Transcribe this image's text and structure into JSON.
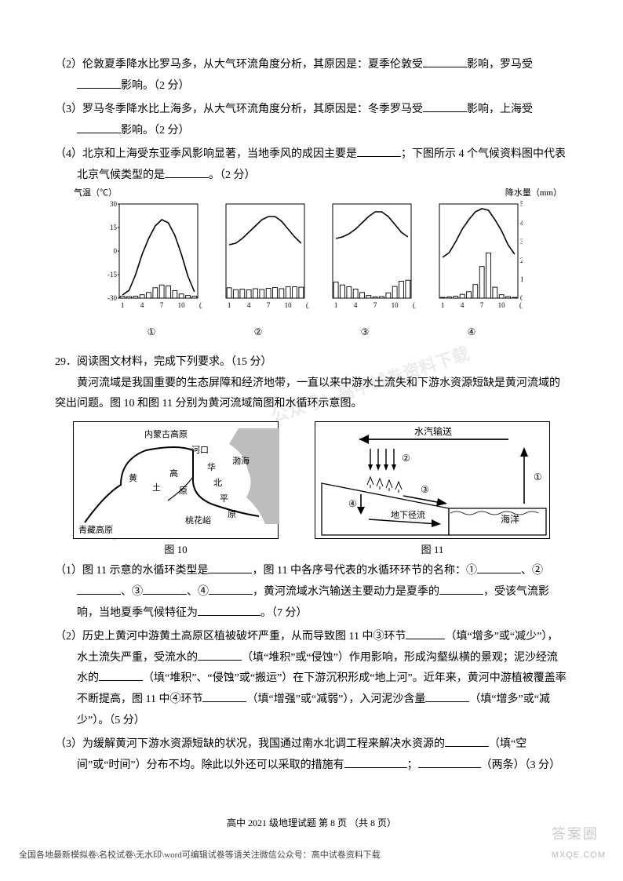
{
  "q2": {
    "s2": "（2）伦敦夏季降水比罗马多，从大气环流角度分析，其原因是：夏季伦敦受",
    "s2b": "影响，罗马受",
    "s2c": "影响。（2 分）",
    "s3": "（3）罗马冬季降水比上海多，从大气环流角度分析，其原因是：冬季罗马受",
    "s3b": "影响，上海受",
    "s3c": "影响。（2 分）",
    "s4": "（4）北京和上海受东亚季风影响显著，当地季风的成因主要是",
    "s4b": "；下图所示 4 个气候资料图中代表北京气候类型的是",
    "s4c": "。（2 分）"
  },
  "chartAxis": {
    "left": "气温（℃）",
    "right": "降水量（mm）"
  },
  "chartX": [
    "1",
    "4",
    "7",
    "10",
    "(月)"
  ],
  "tempTicks": [
    30,
    15,
    0,
    -15,
    -30
  ],
  "precTicks": [
    500,
    400,
    300,
    200,
    100,
    0
  ],
  "chartNums": [
    "①",
    "②",
    "③",
    "④"
  ],
  "charts": [
    {
      "temp": [
        -28,
        -25,
        -15,
        -2,
        8,
        16,
        20,
        18,
        10,
        -2,
        -16,
        -26
      ],
      "prec": [
        10,
        8,
        10,
        18,
        30,
        55,
        70,
        65,
        40,
        22,
        14,
        10
      ]
    },
    {
      "temp": [
        4,
        5,
        8,
        12,
        16,
        20,
        22,
        22,
        19,
        14,
        9,
        5
      ],
      "prec": [
        55,
        45,
        48,
        44,
        50,
        46,
        52,
        56,
        50,
        60,
        60,
        58
      ]
    },
    {
      "temp": [
        8,
        9,
        11,
        14,
        18,
        22,
        25,
        25,
        22,
        17,
        12,
        9
      ],
      "prec": [
        85,
        70,
        60,
        48,
        30,
        14,
        6,
        8,
        28,
        62,
        90,
        95
      ]
    },
    {
      "temp": [
        -4,
        -1,
        6,
        14,
        20,
        25,
        27,
        26,
        20,
        13,
        4,
        -2
      ],
      "prec": [
        4,
        6,
        10,
        20,
        34,
        72,
        168,
        240,
        58,
        18,
        8,
        4
      ]
    }
  ],
  "q29": {
    "head": "29．阅读图文材料，完成下列要求。（15 分）",
    "intro": "黄河流域是我国重要的生态屏障和经济地带，一直以来中游水土流失和下游水资源短缺是黄河流域的突出问题。图 10 和图 11 分别为黄河流域简图和水循环示意图。",
    "cap10": "图 10",
    "cap11": "图 11",
    "s1": "（1）图 11 示意的水循环类型是",
    "s1b": "，图 11 中各序号代表的水循环环节的名称：①",
    "s1c": "、②",
    "s1d": "、③",
    "s1e": "、④",
    "s1f": "，黄河流域水汽输送主要动力是夏季的",
    "s1g": "，受该气流影响，当地夏季气候特征为",
    "s1h": "。（7 分）",
    "s2": "（2）历史上黄河中游黄土高原区植被破坏严重，从而导致图 11 中③环节",
    "s2b": "（填“增多”或“减少”），水土流失严重，受流水的",
    "s2c": "（填“堆积”或“侵蚀”）作用影响，形成沟壑纵横的景观；泥沙经流水的",
    "s2d": "（填“堆积”、“侵蚀”或“搬运”）在下游沉积形成“地上河”。近年来，黄河中游植被覆盖率不断提高，图 11 中④环节",
    "s2e": "（填“增强”或“减弱”），入河泥沙含量",
    "s2f": "（填“增多”或“减少”）。（5 分）",
    "s3": "（3）为缓解黄河下游水资源短缺的状况，我国通过南水北调工程来解决水资源的",
    "s3b": "（填“空间”或“时间”）分布不均。除此以外还可以采取的措施有",
    "s3c": "；",
    "s3d": "（两条）（3 分）"
  },
  "map10": {
    "labels": {
      "nmg": "内蒙古高原",
      "hk": "河口",
      "huang": "黄",
      "tu": "土",
      "gao": "高",
      "yuan": "原",
      "hua": "华",
      "bei": "北",
      "ping": "平",
      "yuan2": "原",
      "bohai": "渤海",
      "thy": "桃花峪",
      "qz": "青藏高原"
    }
  },
  "map11": {
    "labels": {
      "sqss": "水汽输送",
      "dxjl": "地下径流",
      "hy": "海洋"
    },
    "nums": [
      "①",
      "②",
      "③",
      "④"
    ]
  },
  "footer": "高中 2021 级地理试题  第 8 页 （共 8 页）",
  "footer2": "全国各地最新模拟卷\\名校试卷\\无水印\\word可编辑试卷等请关注微信公众号：高中试卷资料下载",
  "stamp": {
    "line1": "答案圈",
    "line2": "MXQE.COM"
  },
  "wm1": "公众号：高中试卷资料下载",
  "wm2": "非卖品"
}
